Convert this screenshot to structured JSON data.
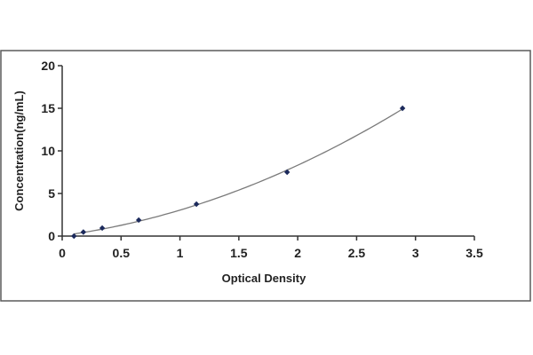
{
  "chart_data": {
    "type": "scatter",
    "title": "",
    "xlabel": "Optical Density",
    "ylabel": "Concentration(ng/mL)",
    "xlim": [
      0,
      3.5
    ],
    "ylim": [
      0,
      20
    ],
    "x_ticks": [
      "0",
      "0.5",
      "1",
      "1.5",
      "2",
      "2.5",
      "3",
      "3.5"
    ],
    "y_ticks": [
      "0",
      "5",
      "10",
      "15",
      "20"
    ],
    "grid": false,
    "legend": "none",
    "series": [
      {
        "x": [
          0.1,
          0.18,
          0.34,
          0.65,
          1.14,
          1.91,
          2.89
        ],
        "y": [
          0.0,
          0.47,
          0.94,
          1.88,
          3.75,
          7.5,
          15.0
        ],
        "marker": "diamond",
        "line": "smooth-fit"
      }
    ],
    "colors": {
      "frame": "#5a5a5a",
      "axis": "#333333",
      "curve": "#7a7a7a",
      "marker": "#1c2a5c",
      "text": "#222222"
    }
  }
}
